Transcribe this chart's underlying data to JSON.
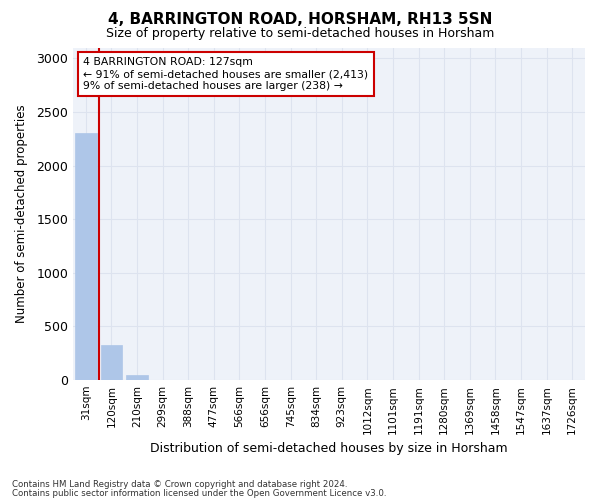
{
  "title": "4, BARRINGTON ROAD, HORSHAM, RH13 5SN",
  "subtitle": "Size of property relative to semi-detached houses in Horsham",
  "xlabel": "Distribution of semi-detached houses by size in Horsham",
  "ylabel": "Number of semi-detached properties",
  "footnote1": "Contains HM Land Registry data © Crown copyright and database right 2024.",
  "footnote2": "Contains public sector information licensed under the Open Government Licence v3.0.",
  "bin_labels": [
    "31sqm",
    "120sqm",
    "210sqm",
    "299sqm",
    "388sqm",
    "477sqm",
    "566sqm",
    "656sqm",
    "745sqm",
    "834sqm",
    "923sqm",
    "1012sqm",
    "1101sqm",
    "1191sqm",
    "1280sqm",
    "1369sqm",
    "1458sqm",
    "1547sqm",
    "1637sqm",
    "1726sqm"
  ],
  "bar_values": [
    2300,
    330,
    50,
    5,
    2,
    1,
    0,
    0,
    0,
    0,
    0,
    0,
    0,
    0,
    0,
    0,
    0,
    0,
    0,
    0
  ],
  "bar_color": "#aec6e8",
  "vline_color": "#cc0000",
  "annotation_text": "4 BARRINGTON ROAD: 127sqm\n← 91% of semi-detached houses are smaller (2,413)\n9% of semi-detached houses are larger (238) →",
  "annotation_box_color": "#cc0000",
  "ylim": [
    0,
    3100
  ],
  "yticks": [
    0,
    500,
    1000,
    1500,
    2000,
    2500,
    3000
  ],
  "grid_color": "#dde3ef",
  "background_color": "#eef2f9"
}
